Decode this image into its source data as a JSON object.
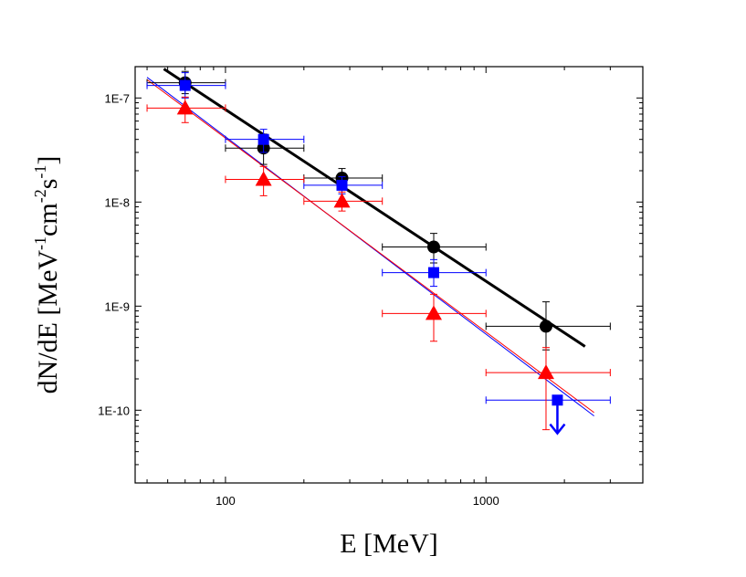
{
  "chart_data": {
    "type": "scatter",
    "xscale": "log",
    "yscale": "log",
    "xlim": [
      45,
      4000
    ],
    "ylim": [
      2e-11,
      2e-07
    ],
    "xlabel": "E [MeV]",
    "ylabel": {
      "main": "dN/dE [MeV",
      "exp1": "-1",
      "unit2": "cm",
      "exp2": "-2",
      "unit3": "s",
      "exp3": "-1",
      "close": "]"
    },
    "x_ticks": [
      {
        "value": 100,
        "label": "100"
      },
      {
        "value": 1000,
        "label": "1000"
      }
    ],
    "y_ticks": [
      {
        "value": 1e-07,
        "label": "1E-7"
      },
      {
        "value": 1e-08,
        "label": "1E-8"
      },
      {
        "value": 1e-09,
        "label": "1E-9"
      },
      {
        "value": 1e-10,
        "label": "1E-10"
      }
    ],
    "series": [
      {
        "name": "black circles",
        "marker": "circle",
        "color": "#000000",
        "points": [
          {
            "x": 70,
            "y": 1.4e-07,
            "xerr": [
              50,
              100
            ],
            "yerr": [
              1.1e-07,
              1.8e-07
            ]
          },
          {
            "x": 140,
            "y": 3.3e-08,
            "xerr": [
              100,
              200
            ],
            "yerr": [
              2.3e-08,
              4.5e-08
            ]
          },
          {
            "x": 280,
            "y": 1.7e-08,
            "xerr": [
              200,
              400
            ],
            "yerr": [
              1.45e-08,
              2.1e-08
            ]
          },
          {
            "x": 630,
            "y": 3.7e-09,
            "xerr": [
              400,
              1000
            ],
            "yerr": [
              2.6e-09,
              5e-09
            ]
          },
          {
            "x": 1700,
            "y": 6.4e-10,
            "xerr": [
              1000,
              3000
            ],
            "yerr": [
              3.8e-10,
              1.1e-09
            ]
          }
        ]
      },
      {
        "name": "blue squares",
        "marker": "square",
        "color": "#0000ff",
        "points": [
          {
            "x": 70,
            "y": 1.32e-07,
            "xerr": [
              50,
              100
            ],
            "yerr": [
              1e-07,
              1.75e-07
            ]
          },
          {
            "x": 140,
            "y": 4e-08,
            "xerr": [
              100,
              200
            ],
            "yerr": [
              3e-08,
              5e-08
            ]
          },
          {
            "x": 280,
            "y": 1.45e-08,
            "xerr": [
              200,
              400
            ],
            "yerr": [
              1.2e-08,
              1.75e-08
            ]
          },
          {
            "x": 630,
            "y": 2.1e-09,
            "xerr": [
              400,
              1000
            ],
            "yerr": [
              1.55e-09,
              2.8e-09
            ]
          },
          {
            "x": 1880,
            "y": 1.25e-10,
            "xerr": [
              1000,
              3000
            ],
            "upper_limit": true,
            "arrow_to": 6e-11
          }
        ]
      },
      {
        "name": "red triangles",
        "marker": "triangle",
        "color": "#ff0000",
        "points": [
          {
            "x": 70,
            "y": 8e-08,
            "xerr": [
              50,
              100
            ],
            "yerr": [
              5.8e-08,
              1.02e-07
            ]
          },
          {
            "x": 140,
            "y": 1.65e-08,
            "xerr": [
              100,
              200
            ],
            "yerr": [
              1.15e-08,
              2.2e-08
            ]
          },
          {
            "x": 280,
            "y": 1.02e-08,
            "xerr": [
              200,
              400
            ],
            "yerr": [
              8.2e-09,
              1.25e-08
            ]
          },
          {
            "x": 630,
            "y": 8.5e-10,
            "xerr": [
              400,
              1000
            ],
            "yerr": [
              4.6e-10,
              1.3e-09
            ]
          },
          {
            "x": 1700,
            "y": 2.3e-10,
            "xerr": [
              1000,
              3000
            ],
            "yerr": [
              6.5e-11,
              4e-10
            ]
          }
        ]
      }
    ],
    "fit_lines": [
      {
        "name": "black fit",
        "color": "#000000",
        "width": 3,
        "x": [
          58,
          2400
        ],
        "y": [
          1.9e-07,
          4.1e-10
        ]
      },
      {
        "name": "blue fit",
        "color": "#0000ff",
        "width": 1,
        "x": [
          50,
          2600
        ],
        "y": [
          1.58e-07,
          8.8e-11
        ]
      },
      {
        "name": "red fit",
        "color": "#ff0000",
        "width": 1,
        "x": [
          50,
          2600
        ],
        "y": [
          1.5e-07,
          9.5e-11
        ]
      }
    ]
  }
}
